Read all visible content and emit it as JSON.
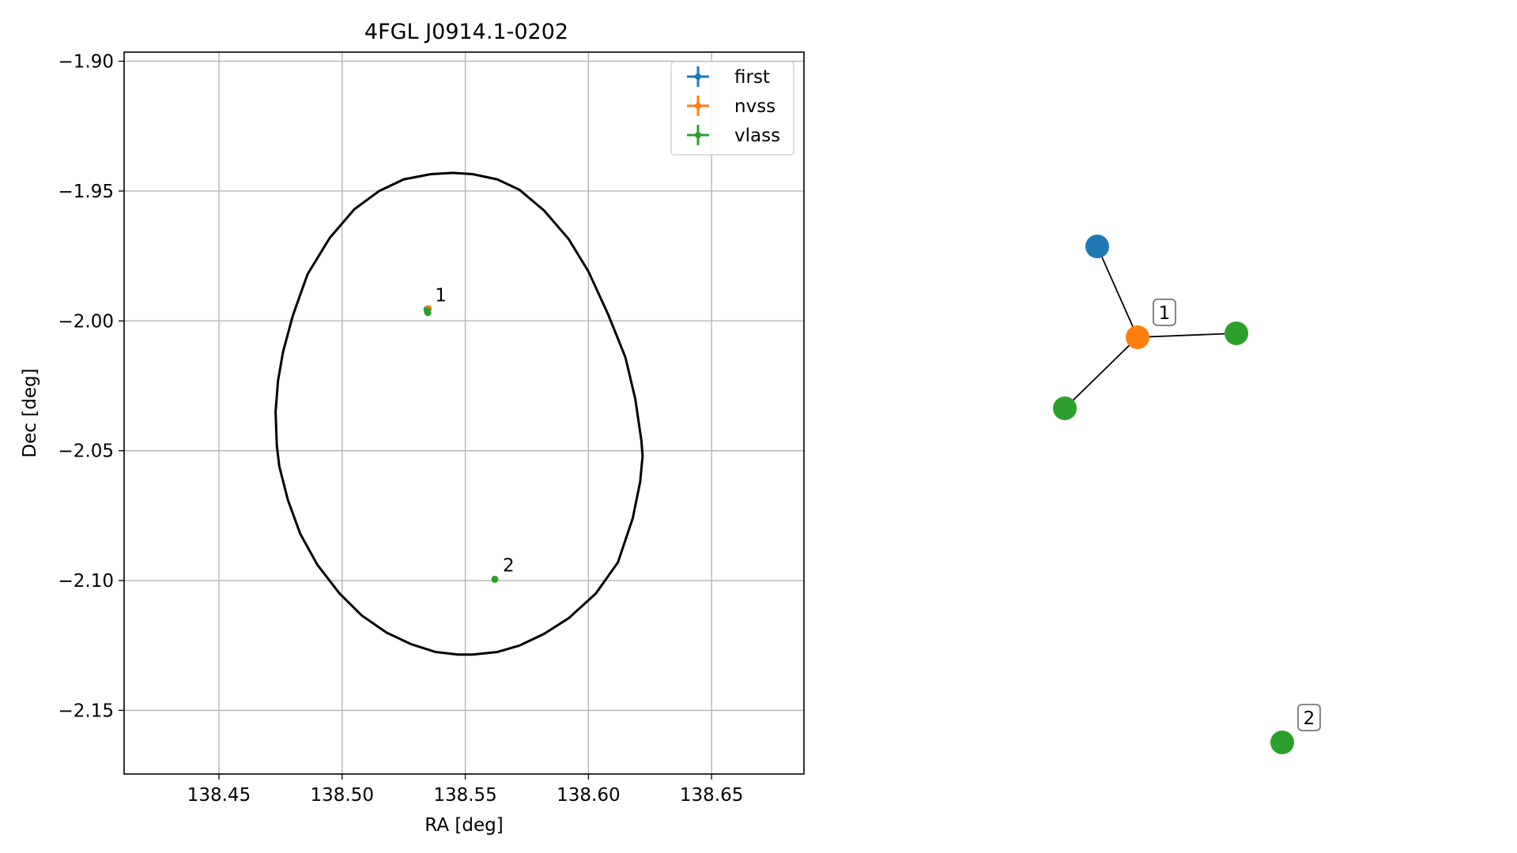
{
  "chart_data": [
    {
      "type": "scatter",
      "title": "4FGL J0914.1-0202",
      "xlabel": "RA [deg]",
      "ylabel": "Dec [deg]",
      "xlim": [
        138.4115,
        138.6875
      ],
      "ylim": [
        -2.1745,
        -1.8965
      ],
      "xticks": [
        "138.45",
        "138.50",
        "138.55",
        "138.60",
        "138.65"
      ],
      "yticks": [
        "−1.90",
        "−1.95",
        "−2.00",
        "−2.05",
        "−2.10",
        "−2.15"
      ],
      "xtick_values": [
        138.45,
        138.5,
        138.55,
        138.6,
        138.65
      ],
      "ytick_values": [
        -1.9,
        -1.95,
        -2.0,
        -2.05,
        -2.1,
        -2.15
      ],
      "grid": true,
      "legend_position": "top-right",
      "legend": [
        "first",
        "nvss",
        "vlass"
      ],
      "series": [
        {
          "name": "first",
          "color": "#1f77b4",
          "points": [
            {
              "x": 138.5345,
              "y": -1.9955
            }
          ]
        },
        {
          "name": "nvss",
          "color": "#ff7f0e",
          "points": [
            {
              "x": 138.535,
              "y": -1.9953
            }
          ]
        },
        {
          "name": "vlass",
          "color": "#2ca02c",
          "points": [
            {
              "x": 138.5346,
              "y": -1.9962
            },
            {
              "x": 138.5348,
              "y": -1.9968
            },
            {
              "x": 138.562,
              "y": -2.0995
            }
          ]
        }
      ],
      "ellipse": {
        "color": "#000000",
        "points": [
          [
            138.545,
            -1.943
          ],
          [
            138.553,
            -1.9435
          ],
          [
            138.563,
            -1.9455
          ],
          [
            138.572,
            -1.9495
          ],
          [
            138.582,
            -1.9575
          ],
          [
            138.592,
            -1.9685
          ],
          [
            138.6,
            -1.981
          ],
          [
            138.608,
            -1.9975
          ],
          [
            138.615,
            -2.014
          ],
          [
            138.619,
            -2.03
          ],
          [
            138.6215,
            -2.046
          ],
          [
            138.622,
            -2.052
          ],
          [
            138.621,
            -2.062
          ],
          [
            138.618,
            -2.076
          ],
          [
            138.612,
            -2.093
          ],
          [
            138.603,
            -2.105
          ],
          [
            138.592,
            -2.1145
          ],
          [
            138.582,
            -2.1205
          ],
          [
            138.572,
            -2.125
          ],
          [
            138.563,
            -2.1275
          ],
          [
            138.553,
            -2.1285
          ],
          [
            138.547,
            -2.1285
          ],
          [
            138.538,
            -2.1275
          ],
          [
            138.528,
            -2.1245
          ],
          [
            138.518,
            -2.12
          ],
          [
            138.508,
            -2.1135
          ],
          [
            138.499,
            -2.105
          ],
          [
            138.49,
            -2.094
          ],
          [
            138.483,
            -2.082
          ],
          [
            138.478,
            -2.069
          ],
          [
            138.4745,
            -2.056
          ],
          [
            138.4735,
            -2.048
          ],
          [
            138.473,
            -2.035
          ],
          [
            138.474,
            -2.023
          ],
          [
            138.476,
            -2.012
          ],
          [
            138.48,
            -1.998
          ],
          [
            138.486,
            -1.982
          ],
          [
            138.495,
            -1.968
          ],
          [
            138.505,
            -1.957
          ],
          [
            138.515,
            -1.95
          ],
          [
            138.525,
            -1.9455
          ],
          [
            138.536,
            -1.9435
          ],
          [
            138.545,
            -1.943
          ]
        ]
      },
      "annotations": [
        {
          "text": "1",
          "x": 138.5345,
          "y": -1.9955
        },
        {
          "text": "2",
          "x": 138.562,
          "y": -2.0995
        }
      ]
    },
    {
      "type": "network",
      "nodes": [
        {
          "id": "n_first",
          "survey": "first",
          "color": "#1f77b4",
          "label": ""
        },
        {
          "id": "n_nvss",
          "survey": "nvss",
          "color": "#ff7f0e",
          "label": "1"
        },
        {
          "id": "n_vlass_a",
          "survey": "vlass",
          "color": "#2ca02c",
          "label": ""
        },
        {
          "id": "n_vlass_b",
          "survey": "vlass",
          "color": "#2ca02c",
          "label": ""
        },
        {
          "id": "n_vlass_2",
          "survey": "vlass",
          "color": "#2ca02c",
          "label": "2"
        }
      ],
      "edges": [
        [
          "n_nvss",
          "n_first"
        ],
        [
          "n_nvss",
          "n_vlass_a"
        ],
        [
          "n_nvss",
          "n_vlass_b"
        ]
      ]
    }
  ]
}
